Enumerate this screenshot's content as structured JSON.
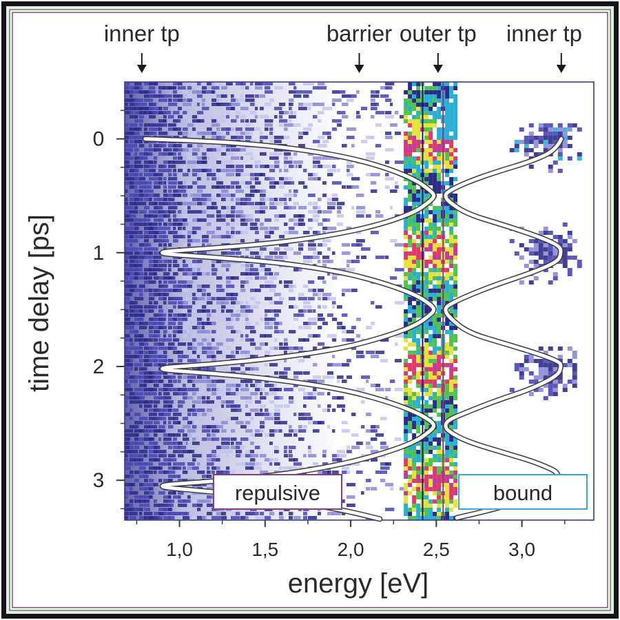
{
  "chart_data": {
    "type": "heatmap",
    "xlabel": "energy [eV]",
    "ylabel": "time delay [ps]",
    "xlim": [
      0.68,
      3.42
    ],
    "ylim": [
      3.35,
      -0.5
    ],
    "x_ticks": [
      {
        "value": 1.0,
        "label": "1,0"
      },
      {
        "value": 1.5,
        "label": "1,5"
      },
      {
        "value": 2.0,
        "label": "2,0"
      },
      {
        "value": 2.5,
        "label": "2,5"
      },
      {
        "value": 3.0,
        "label": "3,0"
      }
    ],
    "y_ticks": [
      {
        "value": 0,
        "label": "0"
      },
      {
        "value": 1,
        "label": "1"
      },
      {
        "value": 2,
        "label": "2"
      },
      {
        "value": 3,
        "label": "3"
      }
    ],
    "top_markers": [
      {
        "label": "inner tp",
        "energy": 0.78
      },
      {
        "label": "barrier",
        "energy": 2.05
      },
      {
        "label": "outer tp",
        "energy": 2.51
      },
      {
        "label": "inner tp",
        "energy": 3.23
      }
    ],
    "region_labels": [
      {
        "label": "repulsive",
        "color": "#8e3b7a"
      },
      {
        "label": "bound",
        "color": "#3ea6d8"
      }
    ],
    "vertical_lines": [
      {
        "energy": 2.42,
        "color": "#1a1a6a"
      },
      {
        "energy": 2.54,
        "color": "#8e3b7a"
      }
    ],
    "repulsive_trajectory": {
      "color": "#ffffff",
      "points": [
        [
          0.8,
          0.0
        ],
        [
          1.2,
          0.02
        ],
        [
          1.6,
          0.07
        ],
        [
          1.95,
          0.15
        ],
        [
          2.2,
          0.25
        ],
        [
          2.38,
          0.36
        ],
        [
          2.47,
          0.46
        ],
        [
          2.49,
          0.5
        ],
        [
          2.47,
          0.54
        ],
        [
          2.38,
          0.64
        ],
        [
          2.2,
          0.74
        ],
        [
          1.95,
          0.83
        ],
        [
          1.6,
          0.91
        ],
        [
          1.2,
          0.96
        ],
        [
          0.8,
          1.0
        ],
        [
          1.2,
          1.04
        ],
        [
          1.6,
          1.09
        ],
        [
          1.95,
          1.17
        ],
        [
          2.2,
          1.27
        ],
        [
          2.38,
          1.37
        ],
        [
          2.47,
          1.46
        ],
        [
          2.49,
          1.5
        ],
        [
          2.47,
          1.54
        ],
        [
          2.38,
          1.64
        ],
        [
          2.2,
          1.74
        ],
        [
          1.95,
          1.84
        ],
        [
          1.6,
          1.92
        ],
        [
          1.2,
          1.98
        ],
        [
          0.8,
          2.02
        ],
        [
          1.2,
          2.06
        ],
        [
          1.6,
          2.12
        ],
        [
          1.95,
          2.2
        ],
        [
          2.2,
          2.3
        ],
        [
          2.38,
          2.4
        ],
        [
          2.47,
          2.48
        ],
        [
          2.49,
          2.52
        ],
        [
          2.47,
          2.56
        ],
        [
          2.38,
          2.66
        ],
        [
          2.2,
          2.76
        ],
        [
          1.95,
          2.86
        ],
        [
          1.6,
          2.95
        ],
        [
          1.2,
          3.01
        ],
        [
          0.8,
          3.05
        ],
        [
          1.2,
          3.1
        ],
        [
          1.6,
          3.17
        ],
        [
          1.95,
          3.26
        ],
        [
          2.17,
          3.34
        ]
      ]
    },
    "bound_trajectory": {
      "color": "#ffffff",
      "points": [
        [
          3.23,
          0.0
        ],
        [
          3.2,
          0.1
        ],
        [
          3.05,
          0.2
        ],
        [
          2.85,
          0.29
        ],
        [
          2.68,
          0.38
        ],
        [
          2.57,
          0.46
        ],
        [
          2.55,
          0.5
        ],
        [
          2.57,
          0.55
        ],
        [
          2.68,
          0.66
        ],
        [
          2.9,
          0.76
        ],
        [
          3.1,
          0.86
        ],
        [
          3.22,
          0.94
        ],
        [
          3.23,
          1.0
        ],
        [
          3.21,
          1.08
        ],
        [
          3.05,
          1.18
        ],
        [
          2.85,
          1.28
        ],
        [
          2.68,
          1.38
        ],
        [
          2.57,
          1.46
        ],
        [
          2.55,
          1.5
        ],
        [
          2.57,
          1.56
        ],
        [
          2.68,
          1.7
        ],
        [
          2.9,
          1.8
        ],
        [
          3.1,
          1.89
        ],
        [
          3.22,
          1.96
        ],
        [
          3.23,
          2.0
        ],
        [
          3.21,
          2.08
        ],
        [
          3.05,
          2.2
        ],
        [
          2.85,
          2.3
        ],
        [
          2.68,
          2.4
        ],
        [
          2.57,
          2.47
        ],
        [
          2.55,
          2.52
        ],
        [
          2.57,
          2.57
        ],
        [
          2.68,
          2.66
        ],
        [
          2.9,
          2.76
        ],
        [
          3.1,
          2.85
        ],
        [
          3.25,
          2.96
        ],
        [
          3.08,
          3.14
        ],
        [
          2.85,
          3.25
        ],
        [
          2.62,
          3.33
        ]
      ]
    }
  }
}
